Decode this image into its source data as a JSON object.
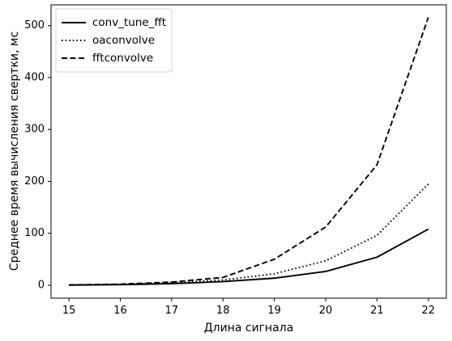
{
  "chart_data": {
    "type": "line",
    "title": "",
    "xlabel": "Длина сигнала",
    "ylabel": "Среднее время вычисления свертки, мс",
    "x": [
      15,
      16,
      17,
      18,
      19,
      20,
      21,
      22
    ],
    "xlim": [
      14.65,
      22.35
    ],
    "ylim": [
      -25,
      540
    ],
    "xticks": [
      15,
      16,
      17,
      18,
      19,
      20,
      21,
      22
    ],
    "yticks": [
      0,
      100,
      200,
      300,
      400,
      500
    ],
    "grid": false,
    "legend_position": "top-left",
    "series": [
      {
        "name": "conv_tune_fft",
        "style": "solid",
        "color": "#000000",
        "values": [
          0.3,
          1.0,
          3.0,
          7.0,
          13.5,
          26.5,
          54.0,
          108.0
        ]
      },
      {
        "name": "oaconvolve",
        "style": "dotted",
        "color": "#000000",
        "values": [
          0.5,
          1.5,
          4.5,
          10.0,
          22.0,
          47.0,
          96.0,
          195.0
        ]
      },
      {
        "name": "fftconvolve",
        "style": "dashed",
        "color": "#000000",
        "values": [
          0.5,
          2.0,
          6.0,
          15.0,
          50.0,
          112.0,
          232.0,
          516.0
        ]
      }
    ]
  }
}
